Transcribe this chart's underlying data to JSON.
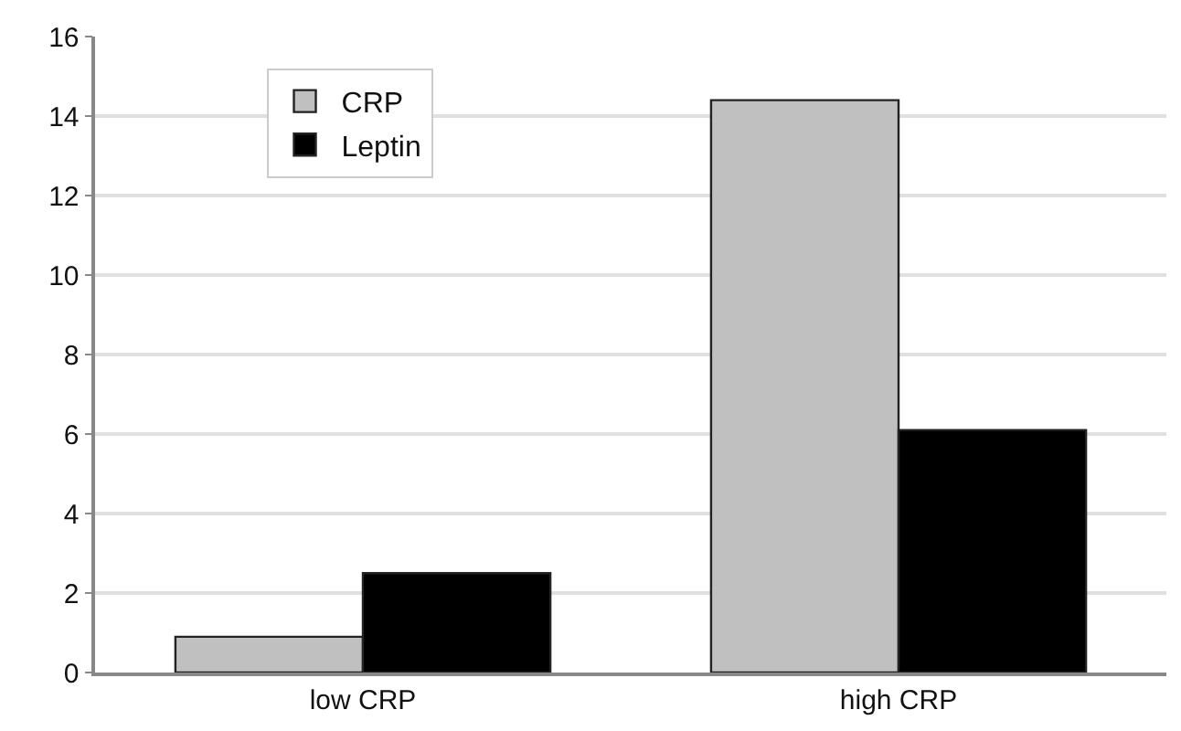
{
  "chart_data": {
    "type": "bar",
    "categories": [
      "low CRP",
      "high CRP"
    ],
    "series": [
      {
        "name": "CRP",
        "color": "#c0c0c0",
        "values": [
          0.9,
          14.4
        ]
      },
      {
        "name": "Leptin",
        "color": "#000000",
        "values": [
          2.5,
          6.1
        ]
      }
    ],
    "ylim": [
      0,
      16
    ],
    "yticks": [
      0,
      2,
      4,
      6,
      8,
      10,
      12,
      14,
      16
    ],
    "grid": "y",
    "legend": "top left"
  }
}
